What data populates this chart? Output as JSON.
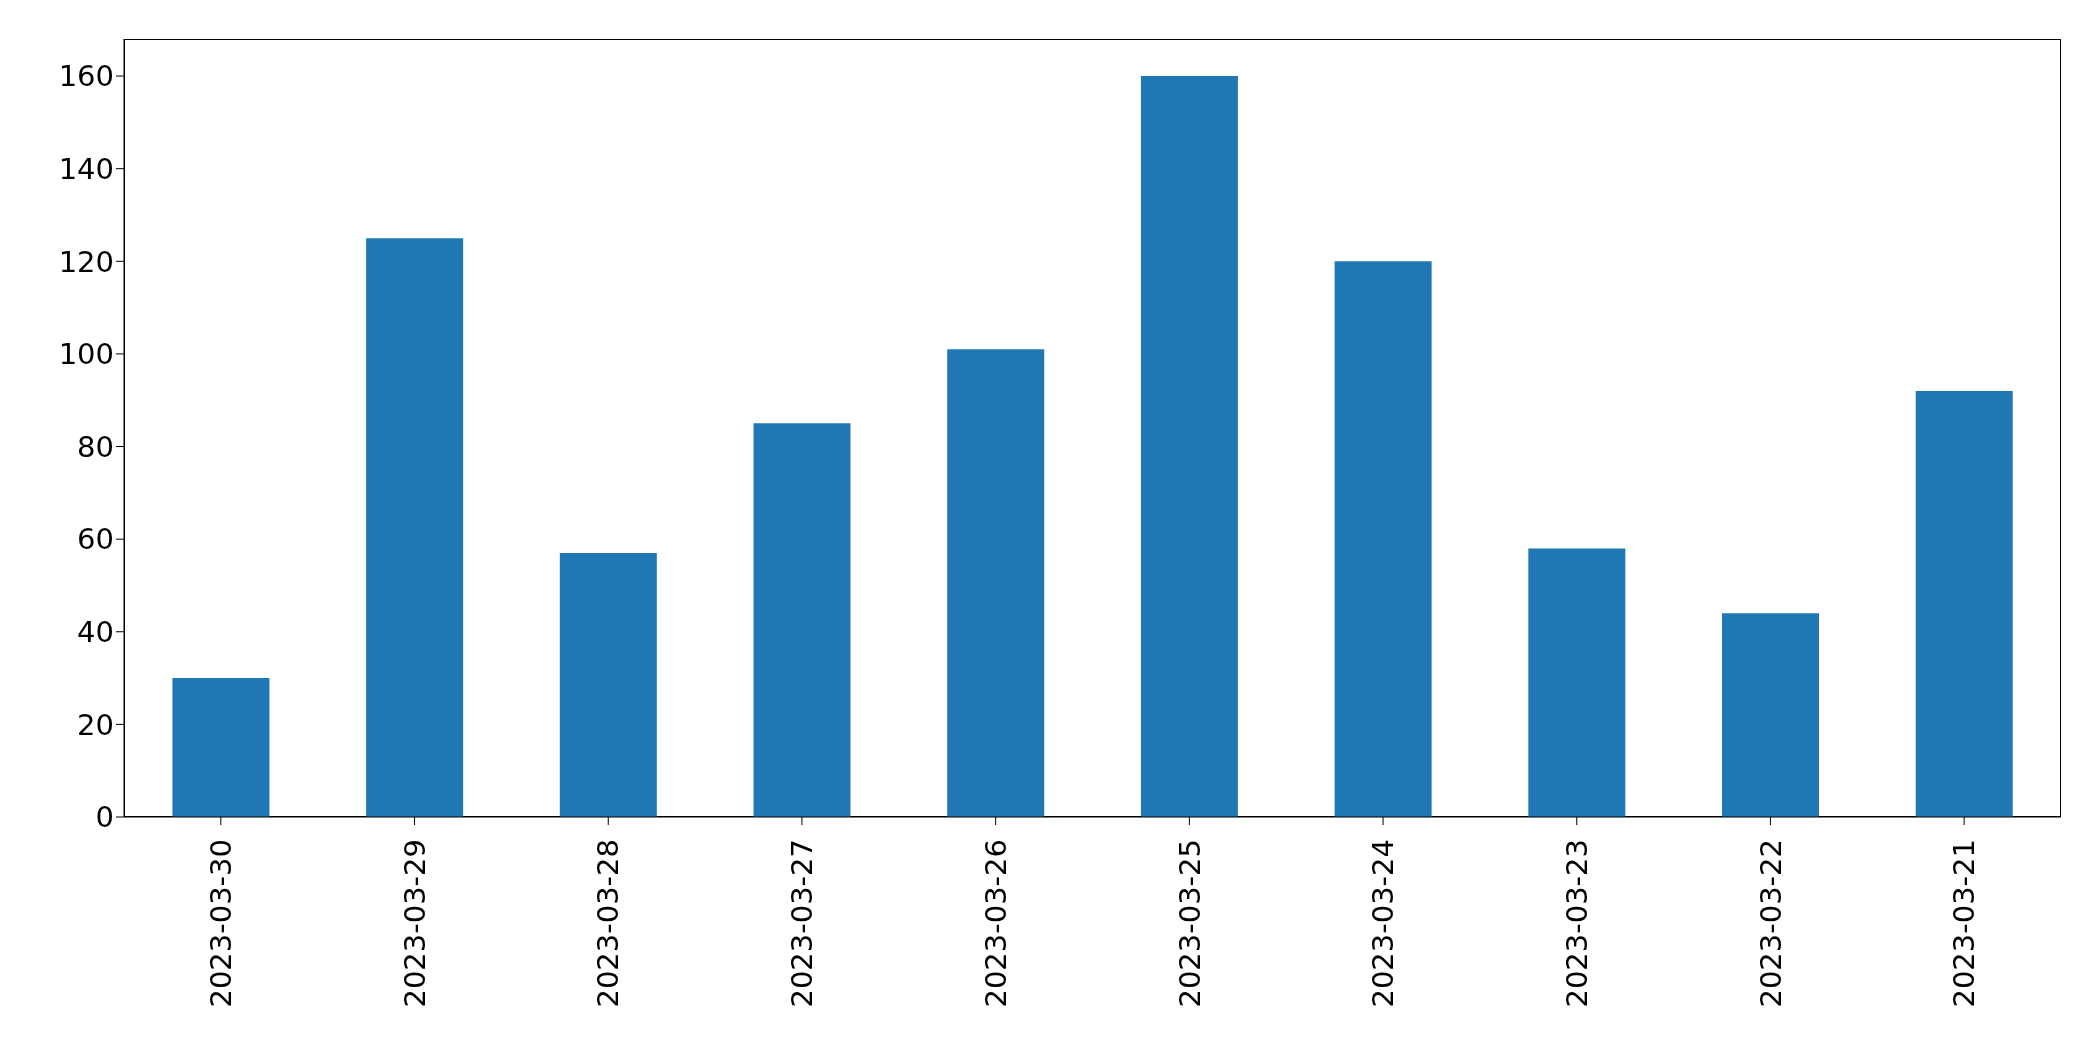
{
  "chart_data": {
    "type": "bar",
    "categories": [
      "2023-03-30",
      "2023-03-29",
      "2023-03-28",
      "2023-03-27",
      "2023-03-26",
      "2023-03-25",
      "2023-03-24",
      "2023-03-23",
      "2023-03-22",
      "2023-03-21"
    ],
    "values": [
      30,
      125,
      57,
      85,
      101,
      160,
      120,
      58,
      44,
      92
    ],
    "color": "#1f77b4",
    "ylim": [
      0,
      168
    ],
    "yticks": [
      0,
      20,
      40,
      60,
      80,
      100,
      120,
      140,
      160
    ],
    "grid": false
  }
}
